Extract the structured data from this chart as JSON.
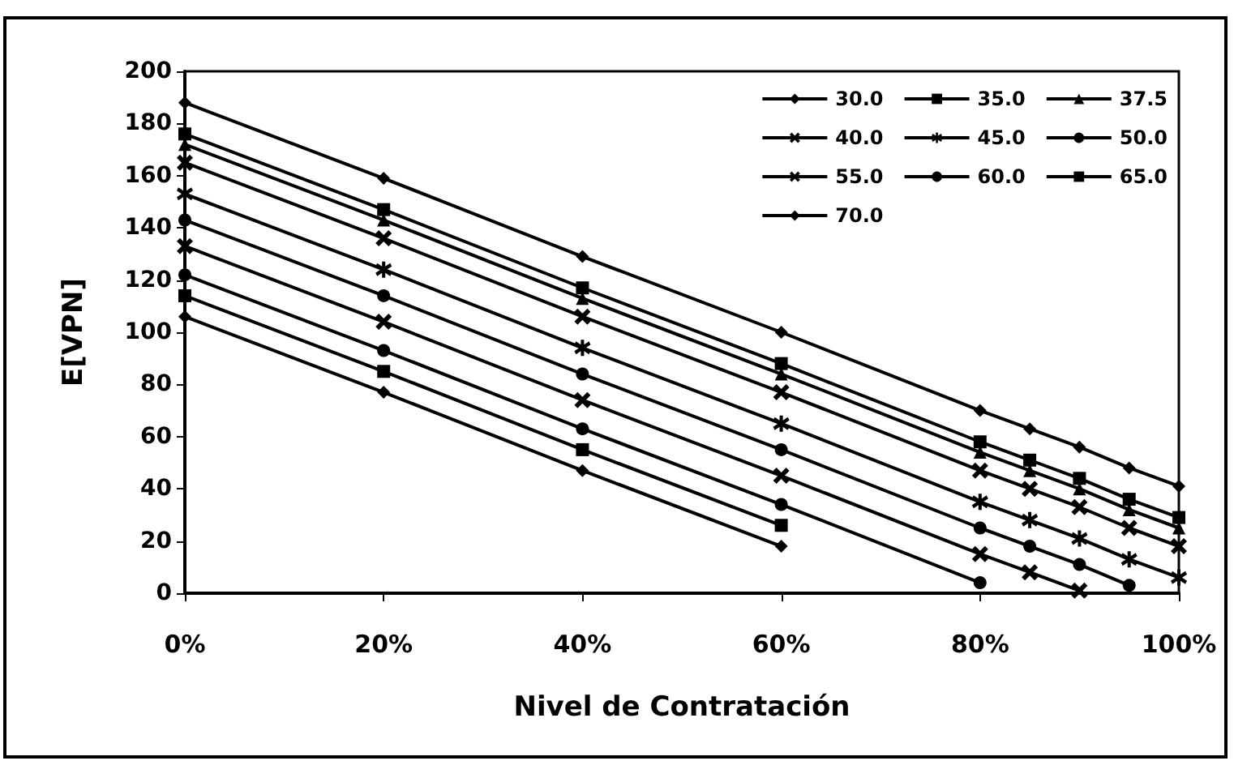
{
  "chart_data": {
    "type": "line",
    "xlabel": "Nivel de Contratación",
    "ylabel": "E[VPN]",
    "x": [
      0,
      20,
      40,
      60,
      80,
      85,
      90,
      95,
      100
    ],
    "xlim": [
      0,
      100
    ],
    "xticks": [
      {
        "value": 0,
        "label": "0%"
      },
      {
        "value": 20,
        "label": "20%"
      },
      {
        "value": 40,
        "label": "40%"
      },
      {
        "value": 60,
        "label": "60%"
      },
      {
        "value": 80,
        "label": "80%"
      },
      {
        "value": 100,
        "label": "100%"
      }
    ],
    "ylim": [
      0,
      200
    ],
    "yticks": [
      0,
      20,
      40,
      60,
      80,
      100,
      120,
      140,
      160,
      180,
      200
    ],
    "grid": false,
    "legend": "top right",
    "line_style": "solid",
    "series": [
      {
        "name": "30.0",
        "color": "#000000",
        "marker": "diamond",
        "values": [
          188,
          159,
          129,
          100,
          70,
          63,
          56,
          48,
          41
        ]
      },
      {
        "name": "35.0",
        "color": "#000000",
        "marker": "square",
        "values": [
          176,
          147,
          117,
          88,
          58,
          51,
          44,
          36,
          29
        ]
      },
      {
        "name": "37.5",
        "color": "#000000",
        "marker": "triangle",
        "values": [
          172,
          143,
          113,
          84,
          54,
          47,
          40,
          32,
          25
        ]
      },
      {
        "name": "40.0",
        "color": "#000000",
        "marker": "cross",
        "values": [
          165,
          136,
          106,
          77,
          47,
          40,
          33,
          25,
          18
        ]
      },
      {
        "name": "45.0",
        "color": "#000000",
        "marker": "star",
        "values": [
          153,
          124,
          94,
          65,
          35,
          28,
          21,
          13,
          6
        ]
      },
      {
        "name": "50.0",
        "color": "#000000",
        "marker": "circle",
        "values": [
          143,
          114,
          84,
          55,
          25,
          18,
          11,
          3,
          null
        ]
      },
      {
        "name": "55.0",
        "color": "#000000",
        "marker": "cross",
        "values": [
          133,
          104,
          74,
          45,
          15,
          8,
          1,
          null,
          null
        ]
      },
      {
        "name": "60.0",
        "color": "#000000",
        "marker": "circle",
        "values": [
          122,
          93,
          63,
          34,
          4,
          null,
          null,
          null,
          null
        ]
      },
      {
        "name": "65.0",
        "color": "#000000",
        "marker": "square",
        "values": [
          114,
          85,
          55,
          26,
          null,
          null,
          null,
          null,
          null
        ]
      },
      {
        "name": "70.0",
        "color": "#000000",
        "marker": "diamond",
        "values": [
          106,
          77,
          47,
          18,
          null,
          null,
          null,
          null,
          null
        ]
      }
    ]
  }
}
